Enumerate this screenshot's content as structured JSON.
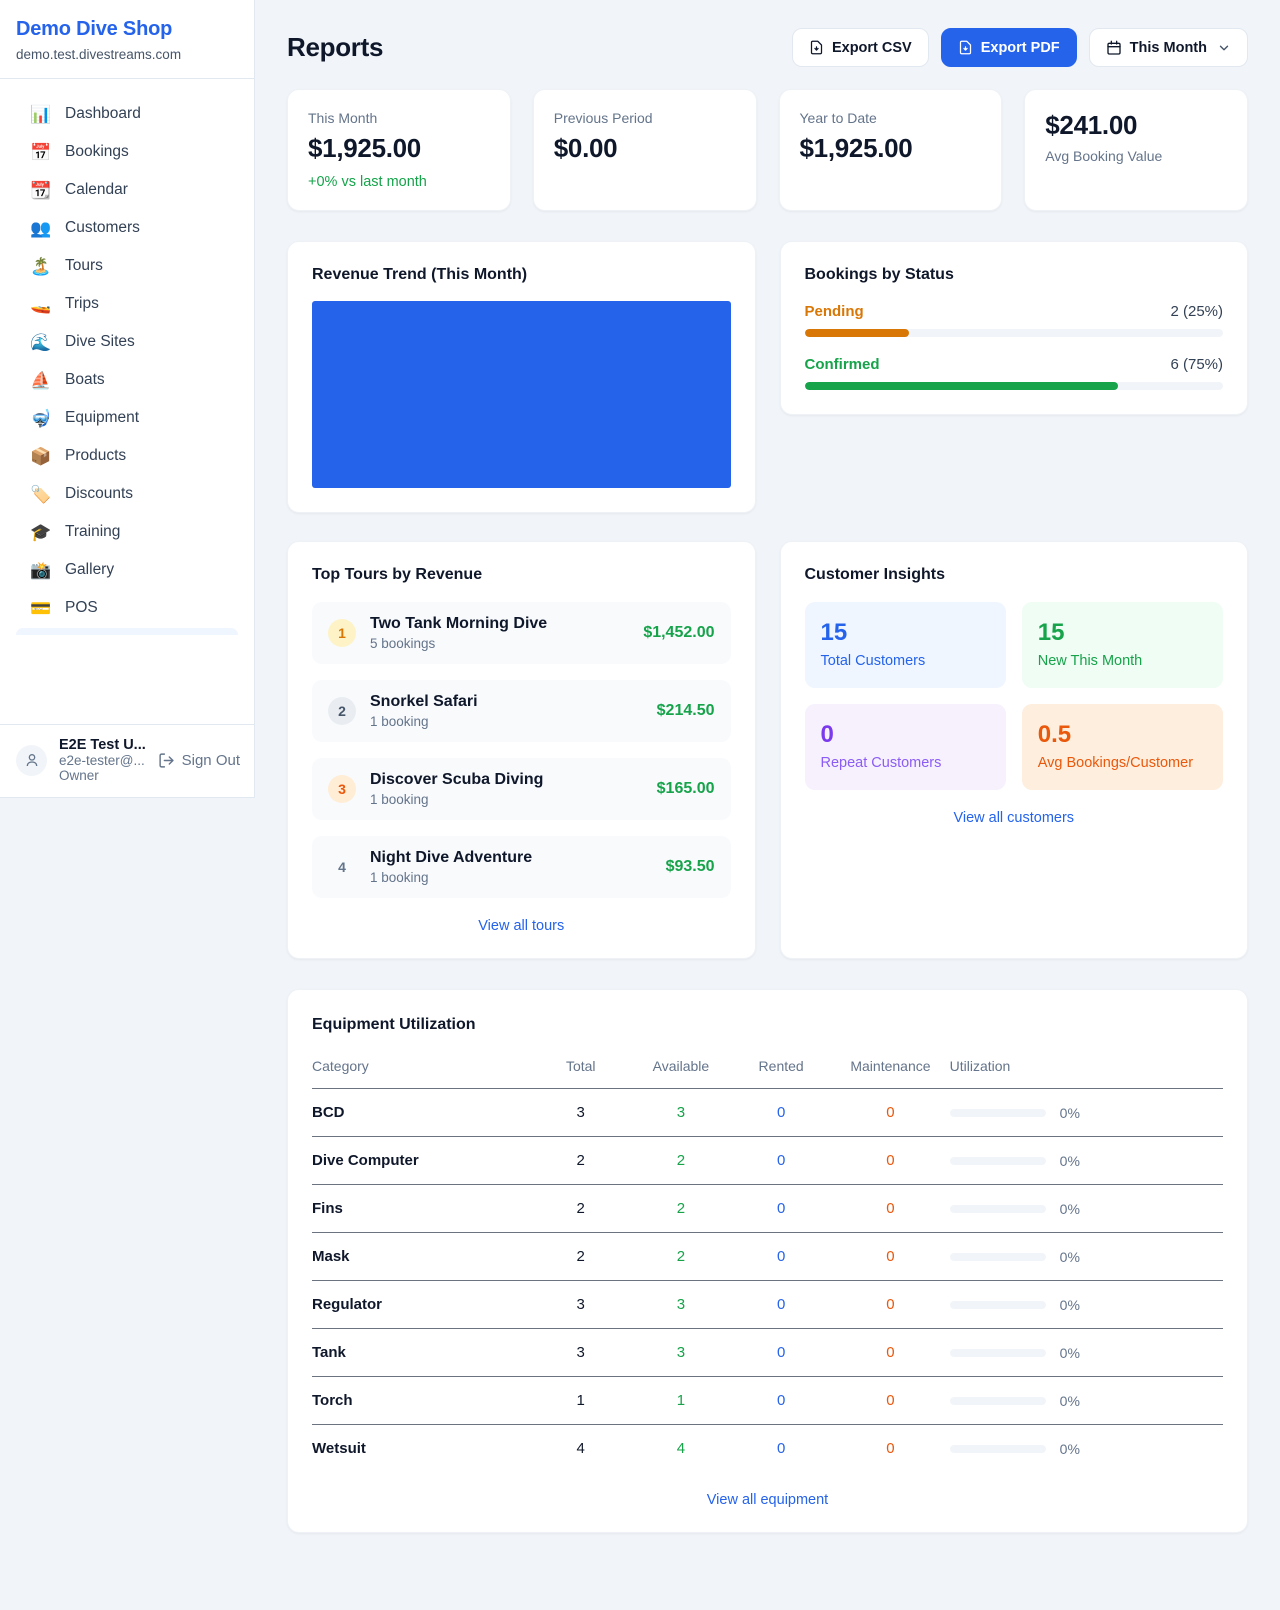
{
  "sidebar": {
    "brand": {
      "name": "Demo Dive Shop",
      "domain": "demo.test.divestreams.com"
    },
    "items": [
      {
        "icon": "📊",
        "label": "Dashboard"
      },
      {
        "icon": "📅",
        "label": "Bookings"
      },
      {
        "icon": "📆",
        "label": "Calendar"
      },
      {
        "icon": "👥",
        "label": "Customers"
      },
      {
        "icon": "🏝️",
        "label": "Tours"
      },
      {
        "icon": "🚤",
        "label": "Trips"
      },
      {
        "icon": "🌊",
        "label": "Dive Sites"
      },
      {
        "icon": "⛵",
        "label": "Boats"
      },
      {
        "icon": "🤿",
        "label": "Equipment"
      },
      {
        "icon": "📦",
        "label": "Products"
      },
      {
        "icon": "🏷️",
        "label": "Discounts"
      },
      {
        "icon": "🎓",
        "label": "Training"
      },
      {
        "icon": "📸",
        "label": "Gallery"
      },
      {
        "icon": "💳",
        "label": "POS"
      }
    ],
    "user": {
      "name": "E2E Test U...",
      "email": "e2e-tester@...",
      "role": "Owner",
      "sign_out_label": "Sign Out"
    }
  },
  "header": {
    "title": "Reports",
    "export_csv_label": "Export CSV",
    "export_pdf_label": "Export PDF",
    "period_selected": "This Month"
  },
  "stats": {
    "cards": [
      {
        "label": "This Month",
        "value": "$1,925.00",
        "delta": "+0% vs last month"
      },
      {
        "label": "Previous Period",
        "value": "$0.00"
      },
      {
        "label": "Year to Date",
        "value": "$1,925.00"
      },
      {
        "label": "Avg Booking Value",
        "value": "$241.00"
      }
    ]
  },
  "revenue_trend": {
    "title": "Revenue Trend (This Month)",
    "bar_color": "#2563eb"
  },
  "bookings_by_status": {
    "title": "Bookings by Status",
    "statuses": [
      {
        "label": "Pending",
        "count_text": "2 (25%)",
        "percent": 25,
        "color": "#d97706"
      },
      {
        "label": "Confirmed",
        "count_text": "6 (75%)",
        "percent": 75,
        "color": "#16a34a"
      }
    ]
  },
  "top_tours": {
    "title": "Top Tours by Revenue",
    "tours": [
      {
        "rank": "1",
        "name": "Two Tank Morning Dive",
        "bookings": "5 bookings",
        "revenue": "$1,452.00"
      },
      {
        "rank": "2",
        "name": "Snorkel Safari",
        "bookings": "1 booking",
        "revenue": "$214.50"
      },
      {
        "rank": "3",
        "name": "Discover Scuba Diving",
        "bookings": "1 booking",
        "revenue": "$165.00"
      },
      {
        "rank": "4",
        "name": "Night Dive Adventure",
        "bookings": "1 booking",
        "revenue": "$93.50"
      }
    ],
    "view_all_label": "View all tours"
  },
  "customer_insights": {
    "title": "Customer Insights",
    "tiles": [
      {
        "value": "15",
        "label": "Total Customers",
        "color": "#2563eb",
        "bg": "#eff6ff"
      },
      {
        "value": "15",
        "label": "New This Month",
        "color": "#16a34a",
        "bg": "#effdf4"
      },
      {
        "value": "0",
        "label": "Repeat Customers",
        "color": "#7c3aed",
        "bg": "#f6f1fd"
      },
      {
        "value": "0.5",
        "label": "Avg Bookings/Customer",
        "color": "#ea580c",
        "bg": "#fdeedd"
      }
    ],
    "view_all_label": "View all customers"
  },
  "equipment_utilization": {
    "title": "Equipment Utilization",
    "columns": [
      "Category",
      "Total",
      "Available",
      "Rented",
      "Maintenance",
      "Utilization"
    ],
    "rows": [
      {
        "category": "BCD",
        "total": "3",
        "available": "3",
        "rented": "0",
        "maintenance": "0",
        "utilization": "0%"
      },
      {
        "category": "Dive Computer",
        "total": "2",
        "available": "2",
        "rented": "0",
        "maintenance": "0",
        "utilization": "0%"
      },
      {
        "category": "Fins",
        "total": "2",
        "available": "2",
        "rented": "0",
        "maintenance": "0",
        "utilization": "0%"
      },
      {
        "category": "Mask",
        "total": "2",
        "available": "2",
        "rented": "0",
        "maintenance": "0",
        "utilization": "0%"
      },
      {
        "category": "Regulator",
        "total": "3",
        "available": "3",
        "rented": "0",
        "maintenance": "0",
        "utilization": "0%"
      },
      {
        "category": "Tank",
        "total": "3",
        "available": "3",
        "rented": "0",
        "maintenance": "0",
        "utilization": "0%"
      },
      {
        "category": "Torch",
        "total": "1",
        "available": "1",
        "rented": "0",
        "maintenance": "0",
        "utilization": "0%"
      },
      {
        "category": "Wetsuit",
        "total": "4",
        "available": "4",
        "rented": "0",
        "maintenance": "0",
        "utilization": "0%"
      }
    ],
    "view_all_label": "View all equipment"
  }
}
